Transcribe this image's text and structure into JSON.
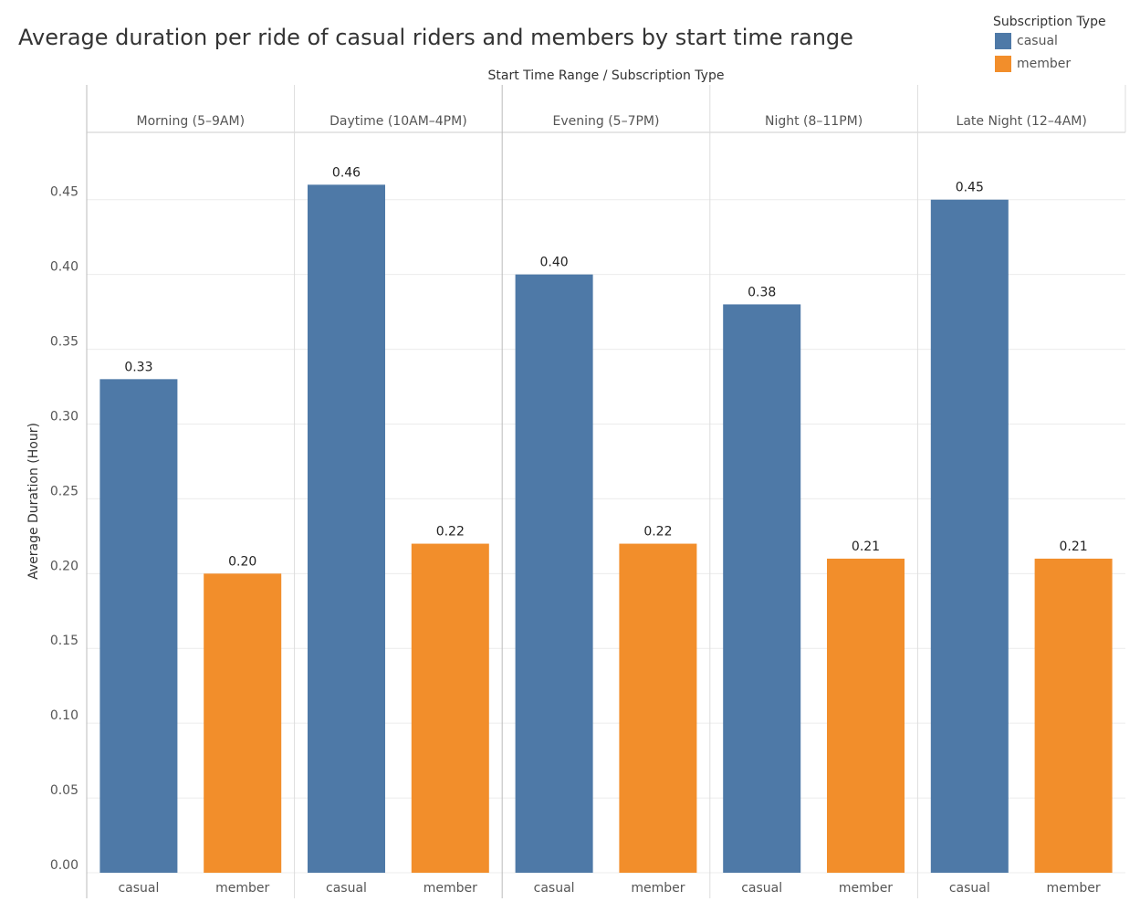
{
  "chart_data": {
    "type": "bar",
    "title": "Average duration per ride of casual riders and members by start time range",
    "x_label": "Start Time Range / Subscription Type",
    "y_label": "Average Duration (Hour)",
    "legend_title": "Subscription Type",
    "legend_position": "top-right",
    "categories": [
      "Morning (5–9AM)",
      "Daytime (10AM–4PM)",
      "Evening (5–7PM)",
      "Night (8–11PM)",
      "Late Night (12–4AM)"
    ],
    "series": [
      {
        "name": "casual",
        "color": "#4e79a7",
        "values": [
          0.33,
          0.46,
          0.4,
          0.38,
          0.45
        ],
        "value_labels": [
          "0.33",
          "0.46",
          "0.40",
          "0.38",
          "0.45"
        ]
      },
      {
        "name": "member",
        "color": "#f28e2b",
        "values": [
          0.2,
          0.22,
          0.22,
          0.21,
          0.21
        ],
        "value_labels": [
          "0.20",
          "0.22",
          "0.22",
          "0.21",
          "0.21"
        ]
      }
    ],
    "ylim": [
      0,
      0.495
    ],
    "yticks": [
      {
        "value": 0,
        "label": "0.00"
      },
      {
        "value": 0.05,
        "label": "0.05"
      },
      {
        "value": 0.1,
        "label": "0.10"
      },
      {
        "value": 0.15,
        "label": "0.15"
      },
      {
        "value": 0.2,
        "label": "0.20"
      },
      {
        "value": 0.25,
        "label": "0.25"
      },
      {
        "value": 0.3,
        "label": "0.30"
      },
      {
        "value": 0.35,
        "label": "0.35"
      },
      {
        "value": 0.4,
        "label": "0.40"
      },
      {
        "value": 0.45,
        "label": "0.45"
      }
    ],
    "grid": true
  }
}
